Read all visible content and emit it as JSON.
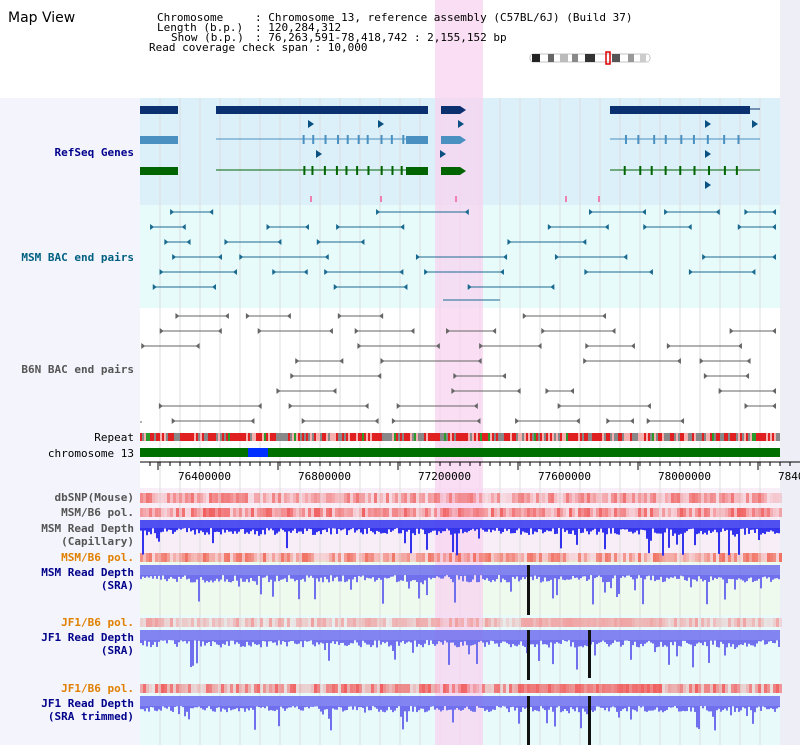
{
  "title": "Map View",
  "header": {
    "chromosome_key": "Chromosome",
    "chromosome_val": ": Chromosome 13, reference assembly (C57BL/6J) (Build 37)",
    "length_key": "Length (b.p.)",
    "length_val": ": 120,284,312",
    "show_key": "Show (b.p.)",
    "show_val": ": 76,263,591-78,418,742 : 2,155,152 bp",
    "read_coverage": "Read coverage check span : 10,000"
  },
  "tracks": {
    "refseq": "RefSeq Genes",
    "msm_bac": "MSM BAC end pairs",
    "b6n_bac": "B6N BAC end pairs",
    "repeat": "Repeat",
    "chromosome": "chromosome 13",
    "dbsnp": "dbSNP(Mouse)",
    "msm_b6_pol_1": "MSM/B6 pol.",
    "msm_depth_cap_1": "MSM Read Depth",
    "msm_depth_cap_2": "(Capillary)",
    "msm_b6_pol_2": "MSM/B6 pol.",
    "msm_depth_sra_1": "MSM Read Depth",
    "msm_depth_sra_2": "(SRA)",
    "jf1_b6_pol_1": "JF1/B6 pol.",
    "jf1_depth_sra_1": "JF1 Read Depth",
    "jf1_depth_sra_2": "(SRA)",
    "jf1_b6_pol_2": "JF1/B6 pol.",
    "jf1_depth_trim_1": "JF1 Read Depth",
    "jf1_depth_trim_2": "(SRA trimmed)"
  },
  "axis_ticks": [
    "76400000",
    "76800000",
    "77200000",
    "77600000",
    "78000000",
    "7840"
  ],
  "colors": {
    "label_blue": "#00008b",
    "label_teal": "#006080",
    "label_orange": "#e08000",
    "label_gray": "#555555",
    "highlight": "#f8d4f0",
    "refseq_bg": "#dcf0fa",
    "msm_bg": "#e8fbfb",
    "green_bg": "#eefaee",
    "depth_blue": "#3333ee",
    "depth_violet": "#7070ee"
  }
}
